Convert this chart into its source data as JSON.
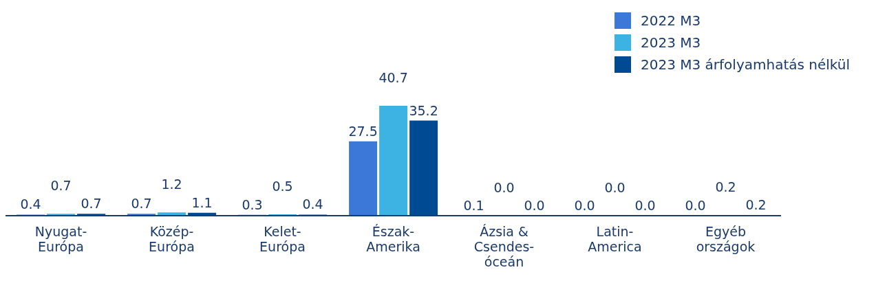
{
  "chart_data": {
    "type": "bar",
    "categories": [
      "Nyugat-Európa",
      "Közép-Európa",
      "Kelet-Európa",
      "Észak-Amerika",
      "Ázsia & Csendes-óceán",
      "Latin-America",
      "Egyéb országok"
    ],
    "series": [
      {
        "name": "2022 M3",
        "color": "#3c78d8",
        "values": [
          0.4,
          0.7,
          0.3,
          27.5,
          0.1,
          0,
          0
        ],
        "value_labels": [
          "0.4",
          "0.7",
          "0.3",
          "27.5",
          "0.1",
          "0.0",
          "0.0"
        ]
      },
      {
        "name": "2023 M3",
        "color": "#3cb3e3",
        "values": [
          0.7,
          1.2,
          0.5,
          40.7,
          0,
          0,
          0.2
        ],
        "value_labels": [
          "0.7",
          "1.2",
          "0.5",
          "40.7",
          "0.0",
          "0.0",
          "0.2"
        ]
      },
      {
        "name": "2023 M3 árfolyamhatás nélkül",
        "color": "#004a93",
        "values": [
          0.7,
          1.1,
          0.4,
          35.2,
          0,
          0,
          0.2
        ],
        "value_labels": [
          "0.7",
          "1.1",
          "0.4",
          "35.2",
          "0.0",
          "0.0",
          "0.2"
        ]
      }
    ],
    "legend": "top right",
    "grid": false
  }
}
